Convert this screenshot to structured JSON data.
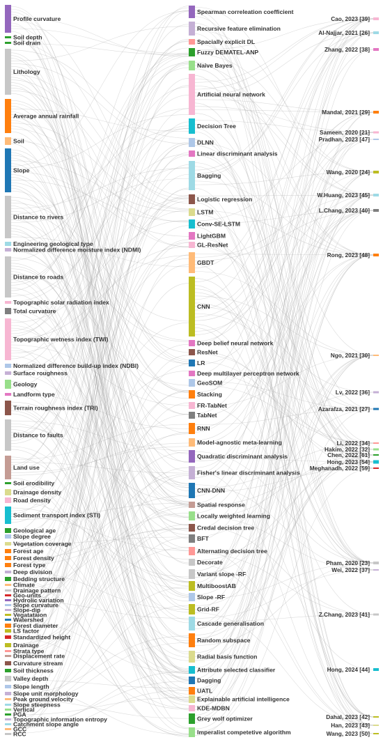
{
  "factors": [
    {
      "label": "Profile curvature",
      "color": "#9467bd"
    },
    {
      "label": "Soil depth",
      "color": "#2ca02c"
    },
    {
      "label": "Soil drain",
      "color": "#2ca02c"
    },
    {
      "label": "Lithology",
      "color": "#c7c7c7"
    },
    {
      "label": "Average annual rainfall",
      "color": "#ff7f0e"
    },
    {
      "label": "Soil",
      "color": "#ffbb78"
    },
    {
      "label": "Slope",
      "color": "#1f77b4"
    },
    {
      "label": "Distance to rivers",
      "color": "#c7c7c7"
    },
    {
      "label": "Engineering geological type",
      "color": "#9edae5"
    },
    {
      "label": "Normalized difference moisture index (NDMI)",
      "color": "#c5b0d5"
    },
    {
      "label": "Distance to roads",
      "color": "#c7c7c7"
    },
    {
      "label": "Topographic solar radiation index",
      "color": "#f7b6d2"
    },
    {
      "label": "Total curvature",
      "color": "#7f7f7f"
    },
    {
      "label": "Topographic wetness index (TWI)",
      "color": "#f7b6d2"
    },
    {
      "label": "Normalized difference build-up index (NDBI)",
      "color": "#aec7e8"
    },
    {
      "label": "Surface roughness",
      "color": "#c5b0d5"
    },
    {
      "label": "Geology",
      "color": "#98df8a"
    },
    {
      "label": "Landform type",
      "color": "#e377c2"
    },
    {
      "label": "Terrain roughness index (TRI)",
      "color": "#8c564b"
    },
    {
      "label": "Distance to faults",
      "color": "#c7c7c7"
    },
    {
      "label": "Land use",
      "color": "#c49c94"
    },
    {
      "label": "Soil erodibility",
      "color": "#2ca02c"
    },
    {
      "label": "Drainage density",
      "color": "#dbdb8d"
    },
    {
      "label": "Road density",
      "color": "#f7b6d2"
    },
    {
      "label": "Sediment transport index (STI)",
      "color": "#17becf"
    },
    {
      "label": "Geological age",
      "color": "#2ca02c"
    },
    {
      "label": "Slope degree",
      "color": "#aec7e8"
    },
    {
      "label": "Vegetation coverage",
      "color": "#dbdb8d"
    },
    {
      "label": "Forest age",
      "color": "#ff7f0e"
    },
    {
      "label": "Forest density",
      "color": "#ff7f0e"
    },
    {
      "label": "Forest type",
      "color": "#ff7f0e"
    },
    {
      "label": "Deep division",
      "color": "#c5b0d5"
    },
    {
      "label": "Bedding structure",
      "color": "#2ca02c"
    },
    {
      "label": "Climate",
      "color": "#ffbb78"
    },
    {
      "label": "Drainage pattern",
      "color": "#c7c7c7"
    },
    {
      "label": "Geo-units",
      "color": "#d62728"
    },
    {
      "label": "Hydrolic variation",
      "color": "#9467bd"
    },
    {
      "label": "Slope curvature",
      "color": "#aec7e8"
    },
    {
      "label": "Slope-dip",
      "color": "#c5b0d5"
    },
    {
      "label": "Vegatataion",
      "color": "#bcbd22"
    },
    {
      "label": "Watershed",
      "color": "#1f77b4"
    },
    {
      "label": "Forest diameter",
      "color": "#ff7f0e"
    },
    {
      "label": "LS factor",
      "color": "#bcbd22"
    },
    {
      "label": "Standardized height",
      "color": "#d62728"
    },
    {
      "label": "Drainage",
      "color": "#bcbd22"
    },
    {
      "label": "Strata type",
      "color": "#ff9896"
    },
    {
      "label": "Displacement rate",
      "color": "#c49c94"
    },
    {
      "label": "Curvature stream",
      "color": "#8c564b"
    },
    {
      "label": "Soil thickness",
      "color": "#2ca02c"
    },
    {
      "label": "Valley depth",
      "color": "#c7c7c7"
    },
    {
      "label": "Slope length",
      "color": "#aec7e8"
    },
    {
      "label": "Slope unit morphology",
      "color": "#c5b0d5"
    },
    {
      "label": "Peak ground velocity",
      "color": "#ffbb78"
    },
    {
      "label": "Slope steepness",
      "color": "#9edae5"
    },
    {
      "label": "Vertical",
      "color": "#98df8a"
    },
    {
      "label": "PGA",
      "color": "#2ca02c"
    },
    {
      "label": "Topographic information entropy",
      "color": "#c5b0d5"
    },
    {
      "label": "Catchment slope angle",
      "color": "#9edae5"
    },
    {
      "label": "GCC",
      "color": "#ffbb78"
    },
    {
      "label": "RCC",
      "color": "#c7c7c7"
    }
  ],
  "methods": [
    {
      "label": "Spearman correleation coefficient",
      "color": "#9467bd"
    },
    {
      "label": "Recursive feature elimination",
      "color": "#c5b0d5"
    },
    {
      "label": "Spacially explicit DL",
      "color": "#ff9896"
    },
    {
      "label": "Fuzzy DEMATEL-ANP",
      "color": "#2ca02c"
    },
    {
      "label": "Naive Bayes",
      "color": "#98df8a"
    },
    {
      "label": "Artificial neural network",
      "color": "#f7b6d2"
    },
    {
      "label": "Decision Tree",
      "color": "#17becf"
    },
    {
      "label": "DLNN",
      "color": "#aec7e8"
    },
    {
      "label": "Linear discriminant analysis",
      "color": "#e377c2"
    },
    {
      "label": "Bagging",
      "color": "#9edae5"
    },
    {
      "label": "Logistic regression",
      "color": "#8c564b"
    },
    {
      "label": "LSTM",
      "color": "#dbdb8d"
    },
    {
      "label": "Conv-SE-LSTM",
      "color": "#17becf"
    },
    {
      "label": "LightGBM",
      "color": "#e377c2"
    },
    {
      "label": "GL-ResNet",
      "color": "#f7b6d2"
    },
    {
      "label": "GBDT",
      "color": "#ffbb78"
    },
    {
      "label": "CNN",
      "color": "#bcbd22"
    },
    {
      "label": "Deep belief neural network",
      "color": "#e377c2"
    },
    {
      "label": "ResNet",
      "color": "#8c564b"
    },
    {
      "label": "LR",
      "color": "#1f77b4"
    },
    {
      "label": "Deep multilayer perceptron network",
      "color": "#e377c2"
    },
    {
      "label": "GeoSOM",
      "color": "#aec7e8"
    },
    {
      "label": "Stacking",
      "color": "#ff7f0e"
    },
    {
      "label": "FR-TabNet",
      "color": "#f7b6d2"
    },
    {
      "label": "TabNet",
      "color": "#7f7f7f"
    },
    {
      "label": "RNN",
      "color": "#ff7f0e"
    },
    {
      "label": "Model-agnostic meta-learning",
      "color": "#ffbb78"
    },
    {
      "label": "Quadratic discriminant analysis",
      "color": "#9467bd"
    },
    {
      "label": "Fisher's linear discriminant analysis",
      "color": "#c5b0d5"
    },
    {
      "label": "CNN-DNN",
      "color": "#1f77b4"
    },
    {
      "label": "Spatial response",
      "color": "#c49c94"
    },
    {
      "label": "Locally weighted learning",
      "color": "#98df8a"
    },
    {
      "label": "Credal decision tree",
      "color": "#8c564b"
    },
    {
      "label": "BFT",
      "color": "#7f7f7f"
    },
    {
      "label": "Alternating decision tree",
      "color": "#ff9896"
    },
    {
      "label": "Decorate",
      "color": "#c7c7c7"
    },
    {
      "label": "Variant slope -RF",
      "color": "#c7c7c7"
    },
    {
      "label": "MultiboostAB",
      "color": "#bcbd22"
    },
    {
      "label": "Slope -RF",
      "color": "#aec7e8"
    },
    {
      "label": "Grid-RF",
      "color": "#bcbd22"
    },
    {
      "label": "Cascade generalisation",
      "color": "#9edae5"
    },
    {
      "label": "Random subspace",
      "color": "#ff7f0e"
    },
    {
      "label": "Radial basis function",
      "color": "#dbdb8d"
    },
    {
      "label": "Attribute selected classifier",
      "color": "#17becf"
    },
    {
      "label": "Dagging",
      "color": "#1f77b4"
    },
    {
      "label": "UATL",
      "color": "#ff7f0e"
    },
    {
      "label": "Explainable artificial intelligence",
      "color": "#dbdb8d"
    },
    {
      "label": "KDE-MDBN",
      "color": "#f7b6d2"
    },
    {
      "label": "Grey wolf optimizer",
      "color": "#2ca02c"
    },
    {
      "label": "Imperalist competetive algorithm",
      "color": "#98df8a"
    }
  ],
  "papers": [
    {
      "label": "Cao, 2023 [39]",
      "color": "#f7b6d2"
    },
    {
      "label": "Al-Najjar, 2021 [26]",
      "color": "#9edae5"
    },
    {
      "label": "Zhang, 2022 [38]",
      "color": "#e377c2"
    },
    {
      "label": "Mandal, 2021 [29]",
      "color": "#ff7f0e"
    },
    {
      "label": "Sameen, 2020 [21]",
      "color": "#f7b6d2"
    },
    {
      "label": "Pradhan, 2023 [47]",
      "color": "#aec7e8"
    },
    {
      "label": "Wang, 2020 [24]",
      "color": "#bcbd22"
    },
    {
      "label": "W.Huang, 2023 [45]",
      "color": "#9edae5"
    },
    {
      "label": "L.Chang, 2023 [40]",
      "color": "#7f7f7f"
    },
    {
      "label": "Rong, 2023 [48]",
      "color": "#ff7f0e"
    },
    {
      "label": "Ngo, 2021 [30]",
      "color": "#ffbb78"
    },
    {
      "label": "Lv, 2022 [36]",
      "color": "#c5b0d5"
    },
    {
      "label": "Azarafza, 2021 [27]",
      "color": "#1f77b4"
    },
    {
      "label": "Li, 2022 [34]",
      "color": "#ff9896"
    },
    {
      "label": "Hakim, 2022 [32]",
      "color": "#98df8a"
    },
    {
      "label": "Chen, 2022 [61]",
      "color": "#2ca02c"
    },
    {
      "label": "Hong, 2023 [54]",
      "color": "#17becf"
    },
    {
      "label": "Meghanadh, 2022 [59]",
      "color": "#d62728"
    },
    {
      "label": "Pham, 2020 [23]",
      "color": "#c7c7c7"
    },
    {
      "label": "Wei, 2022 [37]",
      "color": "#c5b0d5"
    },
    {
      "label": "Z.Chang, 2023 [41]",
      "color": "#c7c7c7"
    },
    {
      "label": "Hong, 2024 [44]",
      "color": "#17becf"
    },
    {
      "label": "Dahal, 2023 [42]",
      "color": "#bcbd22"
    },
    {
      "label": "Han, 2023 [43]",
      "color": "#dbdb8d"
    },
    {
      "label": "Wang, 2023 [50]",
      "color": "#bcbd22"
    }
  ]
}
